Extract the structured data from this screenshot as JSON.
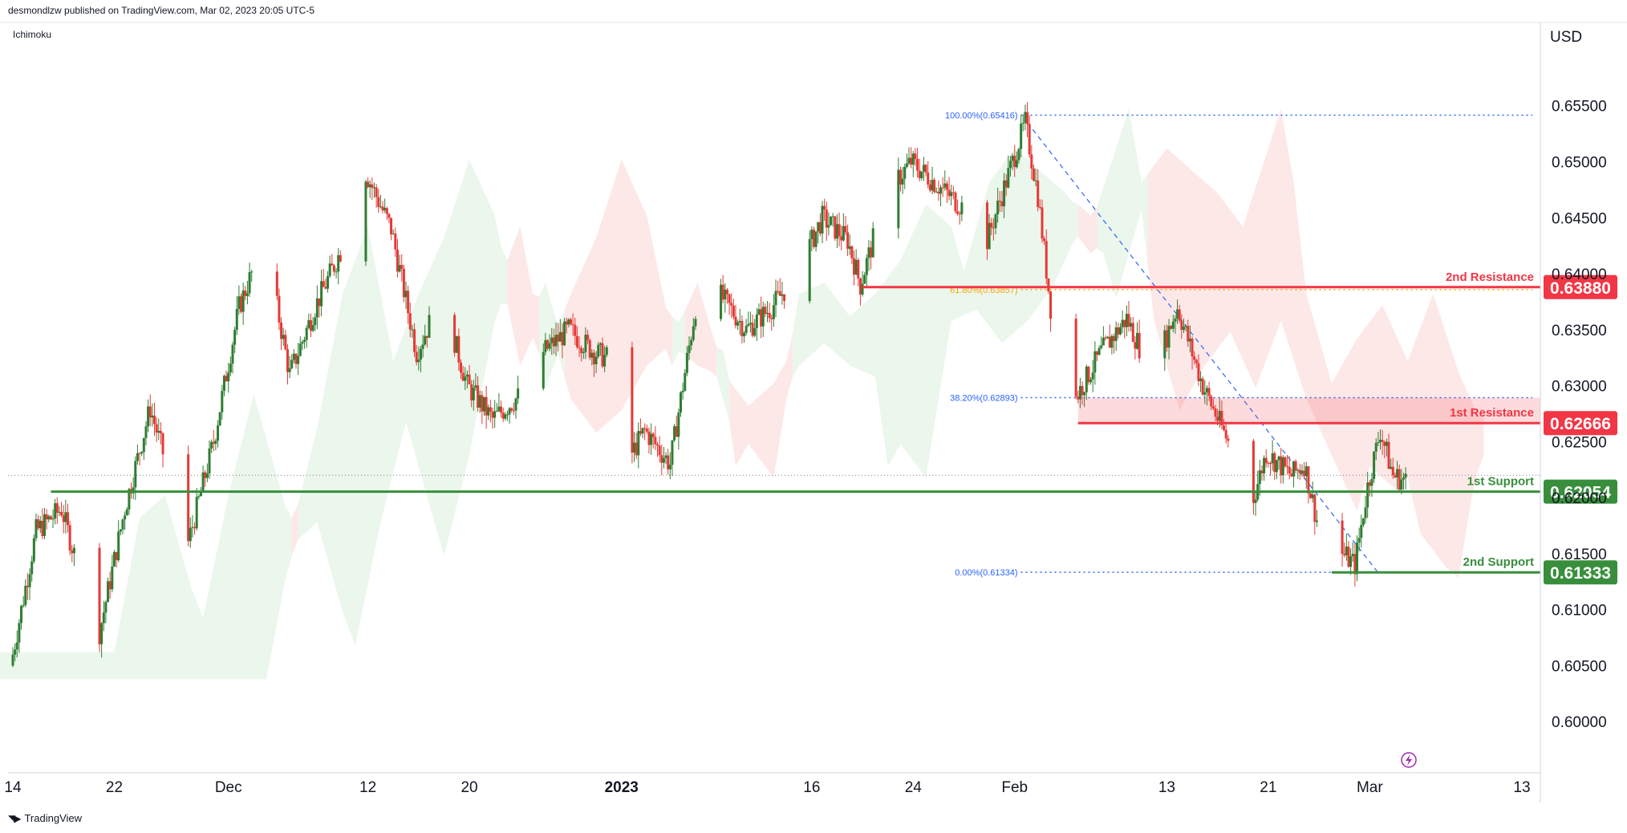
{
  "header": {
    "published": "desmondlzw published on TradingView.com, Mar 02, 2023 20:05 UTC-5"
  },
  "indicator": "Ichimoku",
  "footer": {
    "brand": "TradingView",
    "logo": "tradingview-logo-icon"
  },
  "colors": {
    "up": "#2e7d32",
    "down": "#e53935",
    "support": "#388e3c",
    "resistance": "#f23645",
    "fib": "#2962ff",
    "fib_mid": "#f7a600",
    "cloud_green": "#e8f5e9",
    "cloud_red": "#fde4e4"
  },
  "chart_data": {
    "type": "candlestick",
    "currency": "USD",
    "y_ticks": [
      "0.65500",
      "0.65000",
      "0.64500",
      "0.64000",
      "0.63500",
      "0.63000",
      "0.62500",
      "0.62000",
      "0.61500",
      "0.61000",
      "0.60500",
      "0.60000"
    ],
    "x_ticks": [
      {
        "label": "14",
        "date": "2022-11-14",
        "bold": false
      },
      {
        "label": "22",
        "date": "2022-11-22",
        "bold": false
      },
      {
        "label": "Dec",
        "date": "2022-12-01",
        "bold": false
      },
      {
        "label": "12",
        "date": "2022-12-12",
        "bold": false
      },
      {
        "label": "20",
        "date": "2022-12-20",
        "bold": false
      },
      {
        "label": "2023",
        "date": "2023-01-01",
        "bold": true
      },
      {
        "label": "16",
        "date": "2023-01-16",
        "bold": false
      },
      {
        "label": "24",
        "date": "2023-01-24",
        "bold": false
      },
      {
        "label": "Feb",
        "date": "2023-02-01",
        "bold": false
      },
      {
        "label": "13",
        "date": "2023-02-13",
        "bold": false
      },
      {
        "label": "21",
        "date": "2023-02-21",
        "bold": false
      },
      {
        "label": "Mar",
        "date": "2023-03-01",
        "bold": false
      },
      {
        "label": "13",
        "date": "2023-03-13",
        "bold": false
      }
    ],
    "ylim": [
      0.5955,
      0.6605
    ],
    "price_path": [
      [
        "2022-11-14",
        0.605
      ],
      [
        "2022-11-16",
        0.617
      ],
      [
        "2022-11-18",
        0.619
      ],
      [
        "2022-11-20",
        0.611
      ],
      [
        "2022-11-21",
        0.608
      ],
      [
        "2022-11-23",
        0.619
      ],
      [
        "2022-11-25",
        0.628
      ],
      [
        "2022-11-28",
        0.616
      ],
      [
        "2022-11-30",
        0.625
      ],
      [
        "2022-12-02",
        0.637
      ],
      [
        "2022-12-04",
        0.643
      ],
      [
        "2022-12-06",
        0.631
      ],
      [
        "2022-12-08",
        0.637
      ],
      [
        "2022-12-10",
        0.642
      ],
      [
        "2022-12-12",
        0.649
      ],
      [
        "2022-12-14",
        0.644
      ],
      [
        "2022-12-16",
        0.633
      ],
      [
        "2022-12-18",
        0.638
      ],
      [
        "2022-12-20",
        0.63
      ],
      [
        "2022-12-22",
        0.627
      ],
      [
        "2022-12-24",
        0.629
      ],
      [
        "2022-12-26",
        0.633
      ],
      [
        "2022-12-28",
        0.635
      ],
      [
        "2022-12-30",
        0.633
      ],
      [
        "2023-01-01",
        0.632
      ],
      [
        "2023-01-02",
        0.624
      ],
      [
        "2023-01-03",
        0.626
      ],
      [
        "2023-01-05",
        0.623
      ],
      [
        "2023-01-07",
        0.637
      ],
      [
        "2023-01-09",
        0.638
      ],
      [
        "2023-01-11",
        0.635
      ],
      [
        "2023-01-13",
        0.637
      ],
      [
        "2023-01-15",
        0.64
      ],
      [
        "2023-01-17",
        0.645
      ],
      [
        "2023-01-19",
        0.643
      ],
      [
        "2023-01-20",
        0.639
      ],
      [
        "2023-01-22",
        0.647
      ],
      [
        "2023-01-24",
        0.65
      ],
      [
        "2023-01-26",
        0.648
      ],
      [
        "2023-01-28",
        0.646
      ],
      [
        "2023-01-30",
        0.643
      ],
      [
        "2023-02-01",
        0.65
      ],
      [
        "2023-02-02",
        0.6535
      ],
      [
        "2023-02-03",
        0.647
      ],
      [
        "2023-02-04",
        0.637
      ],
      [
        "2023-02-06",
        0.629
      ],
      [
        "2023-02-08",
        0.633
      ],
      [
        "2023-02-10",
        0.636
      ],
      [
        "2023-02-12",
        0.631
      ],
      [
        "2023-02-14",
        0.637
      ],
      [
        "2023-02-16",
        0.63
      ],
      [
        "2023-02-18",
        0.625
      ],
      [
        "2023-02-20",
        0.62
      ],
      [
        "2023-02-21",
        0.624
      ],
      [
        "2023-02-23",
        0.622
      ],
      [
        "2023-02-24",
        0.623
      ],
      [
        "2023-02-25",
        0.618
      ],
      [
        "2023-02-27",
        0.615
      ],
      [
        "2023-02-28",
        0.614
      ],
      [
        "2023-03-01",
        0.621
      ],
      [
        "2023-03-02",
        0.626
      ],
      [
        "2023-03-03",
        0.622
      ],
      [
        "2023-03-04",
        0.6215
      ]
    ],
    "levels": [
      {
        "name": "2nd Resistance",
        "value": 0.6388,
        "label": "0.63880",
        "kind": "resistance"
      },
      {
        "name": "1st Resistance",
        "value": 0.62666,
        "label": "0.62666",
        "kind": "resistance"
      },
      {
        "name": "1st Support",
        "value": 0.62054,
        "label": "0.62054",
        "kind": "support"
      },
      {
        "name": "2nd Support",
        "value": 0.61333,
        "label": "0.61333",
        "kind": "support"
      }
    ],
    "fibonacci": [
      {
        "label": "100.00%(0.65416)",
        "value": 0.65416
      },
      {
        "label": "61.80%(0.63857)",
        "value": 0.63857
      },
      {
        "label": "38.20%(0.62893)",
        "value": 0.62893
      },
      {
        "label": "0.00%(0.61334)",
        "value": 0.61334
      }
    ],
    "last_price": 0.622,
    "grid": false,
    "ichimoku_cloud": true
  }
}
